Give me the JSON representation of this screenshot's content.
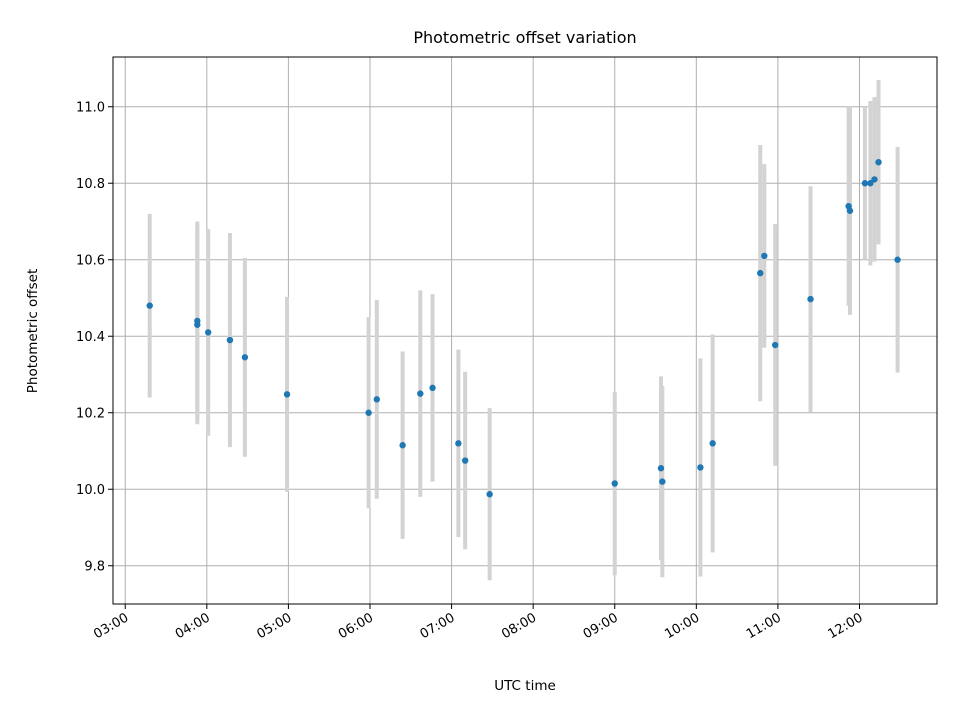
{
  "chart_data": {
    "type": "scatter",
    "title": "Photometric offset variation",
    "xlabel": "UTC time",
    "ylabel": "Photometric offset",
    "x_axis_kind": "time",
    "xlim": [
      "02:51",
      "12:57"
    ],
    "ylim": [
      9.7,
      11.13
    ],
    "x_ticks": [
      "03:00",
      "04:00",
      "05:00",
      "06:00",
      "07:00",
      "08:00",
      "09:00",
      "10:00",
      "11:00",
      "12:00"
    ],
    "y_ticks": [
      9.8,
      10.0,
      10.2,
      10.4,
      10.6,
      10.8,
      11.0
    ],
    "y_tick_labels": [
      "9.8",
      "10.0",
      "10.2",
      "10.4",
      "10.6",
      "10.8",
      "11.0"
    ],
    "grid": true,
    "colors": {
      "points": "#1f77b4",
      "error_bars": "#d3d3d3",
      "grid": "#b0b0b0"
    },
    "points": [
      {
        "x": "03:18",
        "y": 10.48,
        "yerr": 0.24
      },
      {
        "x": "03:53",
        "y": 10.43,
        "yerr": 0.26
      },
      {
        "x": "03:53",
        "y": 10.44,
        "yerr": 0.26
      },
      {
        "x": "04:01",
        "y": 10.41,
        "yerr": 0.27
      },
      {
        "x": "04:17",
        "y": 10.39,
        "yerr": 0.28
      },
      {
        "x": "04:28",
        "y": 10.345,
        "yerr": 0.26
      },
      {
        "x": "04:59",
        "y": 10.248,
        "yerr": 0.255
      },
      {
        "x": "05:59",
        "y": 10.2,
        "yerr": 0.25
      },
      {
        "x": "06:05",
        "y": 10.235,
        "yerr": 0.26
      },
      {
        "x": "06:24",
        "y": 10.115,
        "yerr": 0.245
      },
      {
        "x": "06:37",
        "y": 10.25,
        "yerr": 0.27
      },
      {
        "x": "06:46",
        "y": 10.265,
        "yerr": 0.245
      },
      {
        "x": "07:05",
        "y": 10.12,
        "yerr": 0.245
      },
      {
        "x": "07:10",
        "y": 10.075,
        "yerr": 0.232
      },
      {
        "x": "07:28",
        "y": 9.987,
        "yerr": 0.225
      },
      {
        "x": "09:00",
        "y": 10.015,
        "yerr": 0.24
      },
      {
        "x": "09:34",
        "y": 10.055,
        "yerr": 0.24
      },
      {
        "x": "09:35",
        "y": 10.02,
        "yerr": 0.25
      },
      {
        "x": "10:03",
        "y": 10.057,
        "yerr": 0.285
      },
      {
        "x": "10:12",
        "y": 10.12,
        "yerr": 0.285
      },
      {
        "x": "10:47",
        "y": 10.565,
        "yerr": 0.335
      },
      {
        "x": "10:50",
        "y": 10.61,
        "yerr": 0.24
      },
      {
        "x": "10:58",
        "y": 10.377,
        "yerr": 0.316
      },
      {
        "x": "11:24",
        "y": 10.497,
        "yerr": 0.295
      },
      {
        "x": "11:52",
        "y": 10.74,
        "yerr": 0.26
      },
      {
        "x": "11:53",
        "y": 10.728,
        "yerr": 0.272
      },
      {
        "x": "12:04",
        "y": 10.8,
        "yerr": 0.2
      },
      {
        "x": "12:08",
        "y": 10.8,
        "yerr": 0.215
      },
      {
        "x": "12:11",
        "y": 10.81,
        "yerr": 0.215
      },
      {
        "x": "12:14",
        "y": 10.855,
        "yerr": 0.215
      },
      {
        "x": "12:28",
        "y": 10.6,
        "yerr": 0.295
      }
    ]
  }
}
